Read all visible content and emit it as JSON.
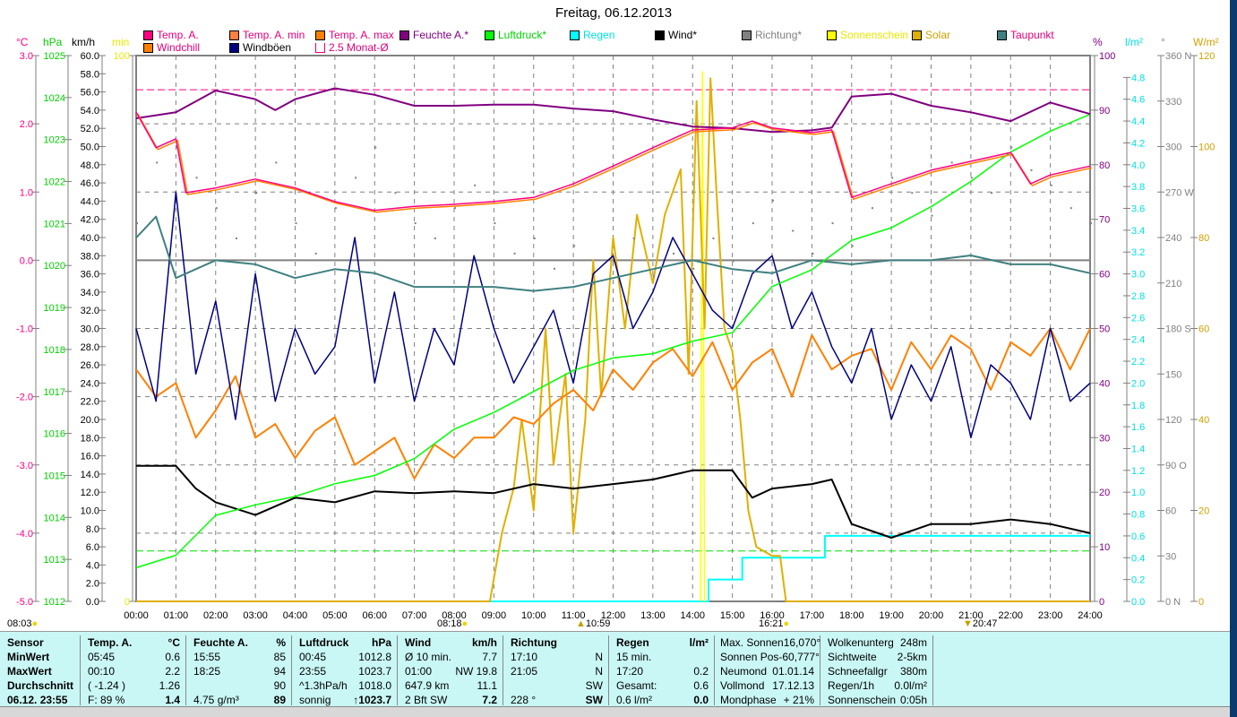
{
  "title": "Freitag, 06.12.2013",
  "units": {
    "temp": "°C",
    "pressure": "hPa",
    "wind": "km/h",
    "sunmin": "min",
    "humidity": "%",
    "rain": "l/m²",
    "direction": "°",
    "solar": "W/m²"
  },
  "legend": [
    {
      "label": "Temp. A.",
      "color": "#ff0080",
      "text": "#e0007a"
    },
    {
      "label": "Temp. A. min",
      "color": "#ff8040",
      "text": "#e0007a"
    },
    {
      "label": "Temp. A. max",
      "color": "#ff8000",
      "text": "#e0007a"
    },
    {
      "label": "Feuchte A.*",
      "color": "#800080",
      "text": "#800080"
    },
    {
      "label": "Luftdruck*",
      "color": "#00ff00",
      "text": "#00d000"
    },
    {
      "label": "Regen",
      "color": "#00ffff",
      "text": "#00e0e0"
    },
    {
      "label": "Wind*",
      "color": "#000000",
      "text": "#000000"
    },
    {
      "label": "Richtung*",
      "color": "#808080",
      "text": "#808080"
    },
    {
      "label": "Sonnenschein",
      "color": "#ffff00",
      "text": "#e8e800"
    },
    {
      "label": "Solar",
      "color": "#e0b000",
      "text": "#d0a000"
    },
    {
      "label": "Taupunkt",
      "color": "#408080",
      "text": "#e0007a"
    },
    {
      "label": "Windchill",
      "color": "#ff8000",
      "text": "#e0007a"
    },
    {
      "label": "Windböen",
      "color": "#000080",
      "text": "#000000"
    },
    {
      "label": "2.5 Monat-Ø",
      "color": "#ffffff",
      "text": "#e0007a"
    }
  ],
  "chart_data": {
    "type": "line",
    "title": "Freitag, 06.12.2013",
    "x_ticks": [
      "00:00",
      "01:00",
      "02:00",
      "03:00",
      "04:00",
      "05:00",
      "06:00",
      "07:00",
      "08:00",
      "09:00",
      "10:00",
      "11:00",
      "12:00",
      "13:00",
      "14:00",
      "15:00",
      "16:00",
      "17:00",
      "18:00",
      "19:00",
      "20:00",
      "21:00",
      "22:00",
      "23:00",
      "24:00"
    ],
    "axes": {
      "temp": {
        "range": [
          -5,
          3
        ],
        "ticks": [
          "3.0",
          "2.0",
          "1.0",
          "0.0",
          "-1.0",
          "-2.0",
          "-3.0",
          "-4.0",
          "-5.0"
        ],
        "color": "#ff0080"
      },
      "pressure": {
        "range": [
          1012,
          1025
        ],
        "ticks": [
          "1025",
          "1024",
          "1023",
          "1022",
          "1021",
          "1020",
          "1019",
          "1018",
          "1017",
          "1016",
          "1015",
          "1014",
          "1013",
          "1012"
        ],
        "color": "#00d000"
      },
      "wind": {
        "range": [
          0,
          60
        ],
        "ticks": [
          "60.0",
          "58.0",
          "56.0",
          "54.0",
          "52.0",
          "50.0",
          "48.0",
          "46.0",
          "44.0",
          "42.0",
          "40.0",
          "38.0",
          "36.0",
          "34.0",
          "32.0",
          "30.0",
          "28.0",
          "26.0",
          "24.0",
          "22.0",
          "20.0",
          "18.0",
          "16.0",
          "14.0",
          "12.0",
          "10.0",
          "8.0",
          "6.0",
          "4.0",
          "2.0",
          "0.0"
        ],
        "color": "#000000"
      },
      "sunmin": {
        "range": [
          0,
          100
        ],
        "ticks": [
          "100",
          "0"
        ],
        "color": "#e8e800"
      },
      "humidity": {
        "range": [
          0,
          100
        ],
        "ticks": [
          "100",
          "90",
          "80",
          "70",
          "60",
          "50",
          "40",
          "30",
          "20",
          "10",
          "0"
        ],
        "color": "#800080"
      },
      "rain": {
        "range": [
          0,
          5
        ],
        "ticks": [
          "4.8",
          "4.6",
          "4.4",
          "4.2",
          "4.0",
          "3.8",
          "3.6",
          "3.4",
          "3.2",
          "3.0",
          "2.8",
          "2.6",
          "2.4",
          "2.2",
          "2.0",
          "1.8",
          "1.6",
          "1.4",
          "1.2",
          "1.0",
          "0.8",
          "0.6",
          "0.4",
          "0.2",
          "0.0"
        ],
        "color": "#00e0e0"
      },
      "direction": {
        "range": [
          0,
          360
        ],
        "ticks": [
          "360 N",
          "330",
          "300",
          "270 W",
          "240",
          "210",
          "180 S",
          "150",
          "120",
          "90  O",
          "60",
          "30",
          "0   N"
        ],
        "color": "#808080"
      },
      "solar": {
        "range": [
          0,
          120
        ],
        "ticks": [
          "120",
          "100",
          "80",
          "60",
          "40",
          "20",
          "0"
        ],
        "color": "#d0a000"
      }
    },
    "reference_lines": {
      "temp_avg_2_5_months": 2.5,
      "pressure_ref": 1013.2,
      "zero_temp": 0
    },
    "series": [
      {
        "name": "Feuchte A.",
        "axis": "humidity",
        "color": "#800080",
        "hours": [
          0,
          1,
          2,
          3,
          3.5,
          4,
          5,
          6,
          7,
          8,
          9,
          10,
          11,
          12,
          13,
          14,
          15,
          16,
          17,
          17.5,
          18,
          19,
          20,
          21,
          22,
          23,
          24
        ],
        "values": [
          88.5,
          89.6,
          93.6,
          92,
          90,
          92,
          94,
          92.8,
          90.8,
          90.8,
          91,
          91,
          90.3,
          89.8,
          88.3,
          87,
          86.7,
          86,
          86.3,
          86.8,
          92.5,
          93,
          90.8,
          89.6,
          88,
          91.4,
          89.3
        ]
      },
      {
        "name": "Luftdruck",
        "axis": "pressure",
        "color": "#00ff00",
        "hours": [
          0,
          1,
          2,
          3,
          4,
          5,
          6,
          7,
          8,
          9,
          10,
          11,
          12,
          13,
          14,
          15,
          16,
          17,
          18,
          19,
          20,
          21,
          22,
          23,
          24
        ],
        "values": [
          1012.8,
          1013.1,
          1014.05,
          1014.3,
          1014.5,
          1014.8,
          1015.0,
          1015.4,
          1016.1,
          1016.5,
          1017.0,
          1017.5,
          1017.8,
          1017.9,
          1018.2,
          1018.4,
          1019.5,
          1019.9,
          1020.6,
          1020.9,
          1021.4,
          1022.0,
          1022.7,
          1023.2,
          1023.6
        ]
      },
      {
        "name": "Temp. A.",
        "axis": "temp",
        "color": "#ff0080",
        "hours": [
          0,
          0.5,
          1,
          1.25,
          2,
          3,
          4,
          5,
          6,
          7,
          8,
          9,
          10,
          11,
          12,
          13,
          14,
          15,
          15.5,
          16,
          17,
          17.5,
          18,
          19,
          20,
          21,
          22,
          22.5,
          23,
          24
        ],
        "values": [
          2.17,
          1.65,
          1.78,
          0.99,
          1.06,
          1.19,
          1.06,
          0.86,
          0.73,
          0.79,
          0.82,
          0.86,
          0.92,
          1.12,
          1.38,
          1.65,
          1.91,
          1.94,
          2.04,
          1.94,
          1.87,
          1.91,
          0.92,
          1.12,
          1.32,
          1.45,
          1.58,
          1.12,
          1.25,
          1.38
        ]
      },
      {
        "name": "Taupunkt",
        "axis": "temp",
        "color": "#408080",
        "hours": [
          0,
          0.5,
          1,
          2,
          3,
          4,
          5,
          6,
          7,
          8,
          9,
          10,
          11,
          12,
          13,
          14,
          15,
          16,
          17,
          18,
          19,
          20,
          21,
          22,
          23,
          24
        ],
        "values": [
          0.33,
          0.64,
          -0.26,
          0.0,
          -0.06,
          -0.26,
          -0.13,
          -0.19,
          -0.39,
          -0.39,
          -0.39,
          -0.45,
          -0.39,
          -0.26,
          -0.13,
          0.0,
          -0.13,
          -0.19,
          0.0,
          -0.06,
          0.0,
          0.0,
          0.07,
          -0.06,
          -0.06,
          -0.19
        ]
      },
      {
        "name": "Wind",
        "axis": "wind",
        "color": "#000000",
        "hours": [
          0,
          1,
          1.5,
          2,
          3,
          4,
          5,
          6,
          7,
          8,
          9,
          10,
          11,
          12,
          13,
          14,
          15,
          15.5,
          16,
          17,
          17.5,
          18,
          19,
          20,
          21,
          22,
          23,
          24
        ],
        "values": [
          14.9,
          14.9,
          12.4,
          10.9,
          9.5,
          11.4,
          10.9,
          12.1,
          11.9,
          12.1,
          11.9,
          12.9,
          12.4,
          12.9,
          13.4,
          14.4,
          14.4,
          11.4,
          12.4,
          12.9,
          13.4,
          8.5,
          7.0,
          8.5,
          8.5,
          9.0,
          8.5,
          7.5
        ]
      },
      {
        "name": "Windböen",
        "axis": "wind",
        "color": "#000080",
        "step": 0.5,
        "values": [
          30,
          22,
          45,
          25,
          33,
          20,
          36,
          22,
          30,
          25,
          28,
          40,
          24,
          34,
          22,
          30,
          26,
          38,
          30,
          24,
          28,
          32,
          24,
          36,
          38,
          30,
          34,
          40,
          36,
          32,
          30,
          36,
          38,
          30,
          34,
          28,
          24,
          30,
          20,
          26,
          22,
          28,
          18,
          26,
          24,
          20,
          30,
          22,
          24
        ]
      },
      {
        "name": "Windchill",
        "axis": "temp",
        "color": "#ff8000",
        "step": 0.5,
        "values": [
          -1.6,
          -2.0,
          -1.8,
          -2.6,
          -2.2,
          -1.7,
          -2.6,
          -2.4,
          -2.9,
          -2.5,
          -2.3,
          -3.0,
          -2.8,
          -2.6,
          -3.2,
          -2.7,
          -2.9,
          -2.6,
          -2.6,
          -2.3,
          -2.4,
          -2.1,
          -1.9,
          -2.2,
          -1.6,
          -1.9,
          -1.5,
          -1.3,
          -1.7,
          -1.2,
          -1.9,
          -1.5,
          -1.3,
          -2.0,
          -1.1,
          -1.6,
          -1.4,
          -1.3,
          -1.9,
          -1.2,
          -1.6,
          -1.1,
          -1.3,
          -1.9,
          -1.2,
          -1.4,
          -1.0,
          -1.6,
          -1.0
        ]
      },
      {
        "name": "Solar",
        "axis": "solar",
        "color": "#e0b000",
        "hours": [
          0,
          8.9,
          9.0,
          9.2,
          9.5,
          9.7,
          10.0,
          10.3,
          10.5,
          10.8,
          11.0,
          11.3,
          11.5,
          11.7,
          12.0,
          12.3,
          12.6,
          13.0,
          13.3,
          13.7,
          13.9,
          14.1,
          14.3,
          14.45,
          14.6,
          14.8,
          15.0,
          15.2,
          15.4,
          15.6,
          16.0,
          16.2,
          16.35,
          24
        ],
        "values": [
          0,
          0,
          5,
          15,
          25,
          40,
          20,
          60,
          30,
          50,
          15,
          40,
          75,
          45,
          80,
          60,
          85,
          70,
          85,
          95,
          50,
          110,
          60,
          115,
          90,
          60,
          55,
          40,
          20,
          12,
          10,
          10,
          0,
          0
        ]
      },
      {
        "name": "Regen",
        "axis": "rain",
        "color": "#00ffff",
        "hours": [
          0,
          14.4,
          14.4,
          15.25,
          15.25,
          17.33,
          17.33,
          24
        ],
        "values": [
          0,
          0,
          0.2,
          0.2,
          0.4,
          0.4,
          0.6,
          0.6
        ]
      },
      {
        "name": "Sonnenschein",
        "axis": "sunmin",
        "color": "#ffff00",
        "hours": [
          14.2,
          14.25,
          14.3
        ],
        "values": [
          0,
          97,
          0
        ]
      },
      {
        "name": "Richtung",
        "axis": "direction",
        "color": "#808080",
        "step": 0.5,
        "points_only": true,
        "values": [
          250,
          290,
          300,
          280,
          260,
          240,
          270,
          290,
          250,
          230,
          260,
          280,
          300,
          270,
          250,
          240,
          260,
          275,
          250,
          230,
          240,
          220,
          235,
          210,
          225,
          240,
          215,
          230,
          220,
          240,
          225,
          250,
          265,
          245,
          230,
          250,
          235,
          260,
          280,
          270,
          255,
          290,
          280,
          270,
          300,
          285,
          275,
          260,
          250
        ]
      }
    ]
  },
  "sun_events": [
    {
      "time": "08:03",
      "icon": "sunrise-icon"
    },
    {
      "time": "08:18",
      "icon": "sun-icon"
    },
    {
      "time": "10:59",
      "icon": "moonrise-icon"
    },
    {
      "time": "16:21",
      "icon": "sunset-icon"
    },
    {
      "time": "20:47",
      "icon": "moonset-icon"
    }
  ],
  "stats": {
    "sensor": {
      "header": "Sensor",
      "rows": [
        "MinWert",
        "MaxWert",
        "Durchschnitt",
        "06.12. 23:55"
      ]
    },
    "temp": {
      "header": "Temp. A.",
      "unit": "°C",
      "rows": [
        [
          "05:45",
          "0.6"
        ],
        [
          "00:10",
          "2.2"
        ],
        [
          "( -1.24 )",
          "1.26"
        ],
        [
          "F: 89 %",
          "1.4"
        ]
      ]
    },
    "humidity": {
      "header": "Feuchte A.",
      "unit": "%",
      "rows": [
        [
          "15:55",
          "85"
        ],
        [
          "18:25",
          "94"
        ],
        [
          "",
          "90"
        ],
        [
          "4.75 g/m³",
          "89"
        ]
      ]
    },
    "pressure": {
      "header": "Luftdruck",
      "unit": "hPa",
      "rows": [
        [
          "00:45",
          "1012.8"
        ],
        [
          "23:55",
          "1023.7"
        ],
        [
          "^1.3hPa/h",
          "1018.0"
        ],
        [
          "sonnig",
          "↑1023.7"
        ]
      ]
    },
    "wind": {
      "header": "Wind",
      "unit": "km/h",
      "rows": [
        [
          "Ø 10 min.",
          "7.7"
        ],
        [
          "01:00",
          "NW 19.8"
        ],
        [
          "647.9 km",
          "11.1"
        ],
        [
          "2 Bft SW",
          "7.2"
        ]
      ]
    },
    "direction": {
      "header": "Richtung",
      "unit": "",
      "rows": [
        [
          "17:10",
          "N"
        ],
        [
          "21:05",
          "N"
        ],
        [
          "",
          "SW"
        ],
        [
          "228 °",
          "SW"
        ]
      ]
    },
    "rain": {
      "header": "Regen",
      "unit": "l/m²",
      "rows": [
        [
          "15 min.",
          ""
        ],
        [
          "17:20",
          "0.2"
        ],
        [
          "Gesamt:",
          "0.6"
        ],
        [
          "0.6 l/m²",
          "0.0"
        ]
      ]
    },
    "astro": {
      "rows": [
        [
          "Max. Sonnen",
          "16,070°"
        ],
        [
          "Sonnen Pos",
          "-60,777°"
        ],
        [
          "Neumond",
          "01.01.14"
        ],
        [
          "Vollmond",
          "17.12.13"
        ],
        [
          "Mondphase",
          "+ 21%"
        ]
      ]
    },
    "extra": {
      "rows": [
        [
          "Wolkenunterg",
          "248m"
        ],
        [
          "Sichtweite",
          "2-5km"
        ],
        [
          "Schneefallgr",
          "380m"
        ],
        [
          "Regen/1h",
          "0.0l/m²"
        ],
        [
          "Sonnenschein",
          "0:05h"
        ]
      ]
    }
  }
}
